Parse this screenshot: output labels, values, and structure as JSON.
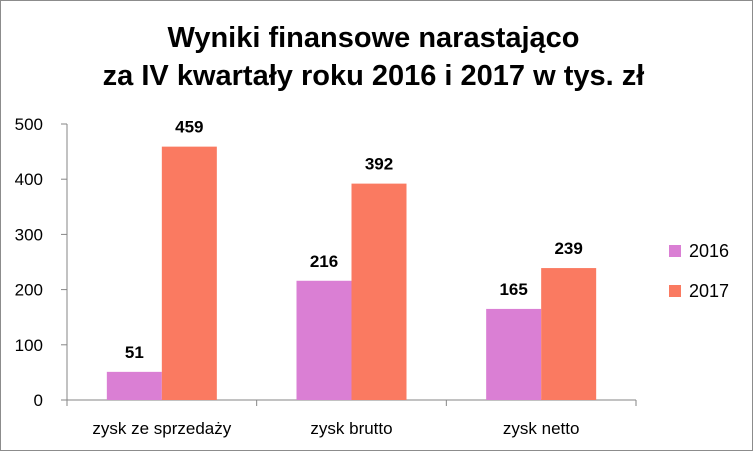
{
  "chart_data": {
    "type": "bar",
    "title_lines": [
      "Wyniki finansowe narastająco",
      "za IV kwartały roku 2016 i 2017 w tys. zł"
    ],
    "categories": [
      "zysk ze sprzedaży",
      "zysk brutto",
      "zysk netto"
    ],
    "series": [
      {
        "name": "2016",
        "values": [
          51,
          216,
          165
        ],
        "color": "#DA7FD4"
      },
      {
        "name": "2017",
        "values": [
          459,
          392,
          239
        ],
        "color": "#FA7A61"
      }
    ],
    "ylim": [
      0,
      500
    ],
    "yticks": [
      0,
      100,
      200,
      300,
      400,
      500
    ],
    "xlabel": "",
    "ylabel": "",
    "grid": false,
    "legend_position": "right",
    "data_labels": true,
    "axis_color": "#868686"
  }
}
